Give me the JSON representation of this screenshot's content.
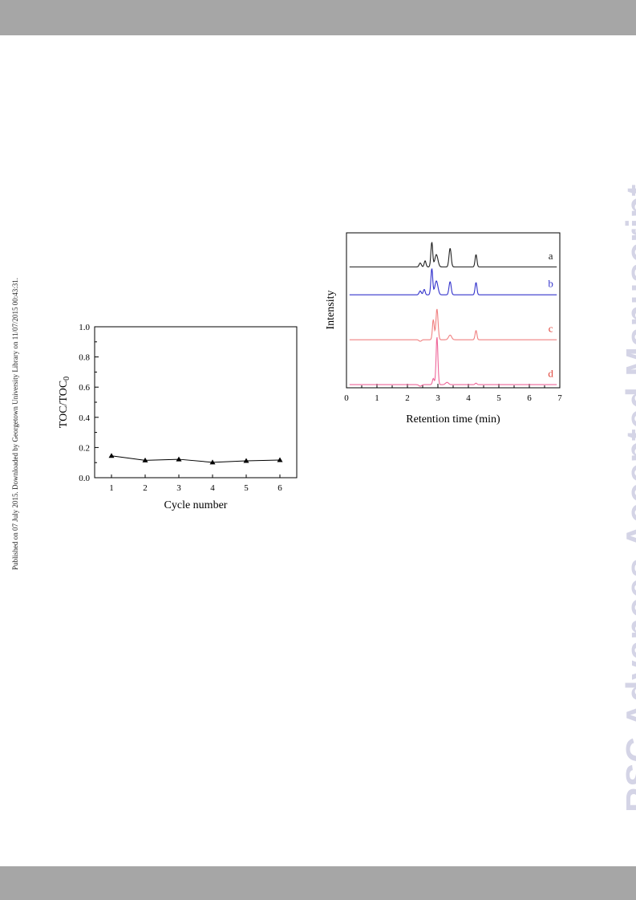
{
  "header": {},
  "side_note": "Published on 07 July 2015. Downloaded by Georgetown University Library on 11/07/2015 00:43:31.",
  "watermark": "RSC Advances Accepted Manuscript",
  "colors": {
    "band": "#a6a6a6",
    "watermark": "#d4d4e6"
  },
  "chart_data": [
    {
      "type": "line",
      "title": "",
      "xlabel": "Cycle number",
      "ylabel": "TOC/TOC",
      "ylabel_sub": "0",
      "x": [
        1,
        2,
        3,
        4,
        5,
        6
      ],
      "series": [
        {
          "values": [
            0.145,
            0.115,
            0.122,
            0.102,
            0.112,
            0.117
          ],
          "marker": "triangle",
          "color": "#000000"
        }
      ],
      "xlim": [
        0.5,
        6.5
      ],
      "ylim": [
        0.0,
        1.0
      ],
      "xticks": [
        "1",
        "2",
        "3",
        "4",
        "5",
        "6"
      ],
      "yticks": [
        "0.0",
        "0.2",
        "0.4",
        "0.6",
        "0.8",
        "1.0"
      ],
      "grid": false
    },
    {
      "type": "line",
      "title": "",
      "xlabel": "Retention time (min)",
      "ylabel": "Intensity",
      "xlim": [
        0,
        7
      ],
      "xticks": [
        "0",
        "1",
        "2",
        "3",
        "4",
        "5",
        "6",
        "7"
      ],
      "grid": false,
      "series": [
        {
          "label": "a",
          "color": "#222222",
          "baseline": 0.78,
          "peaks": [
            [
              2.42,
              0.025,
              0.035
            ],
            [
              2.58,
              0.04,
              0.03
            ],
            [
              2.8,
              0.16,
              0.03
            ],
            [
              2.95,
              0.08,
              0.05
            ],
            [
              3.4,
              0.12,
              0.035
            ],
            [
              4.25,
              0.08,
              0.03
            ]
          ]
        },
        {
          "label": "b",
          "color": "#3333cc",
          "baseline": 0.6,
          "peaks": [
            [
              2.42,
              0.025,
              0.035
            ],
            [
              2.55,
              0.035,
              0.03
            ],
            [
              2.8,
              0.17,
              0.03
            ],
            [
              2.95,
              0.09,
              0.05
            ],
            [
              3.4,
              0.085,
              0.035
            ],
            [
              4.25,
              0.08,
              0.03
            ]
          ]
        },
        {
          "label": "c",
          "color": "#f08080",
          "baseline": 0.31,
          "peaks": [
            [
              2.42,
              -0.01,
              0.04
            ],
            [
              2.85,
              0.13,
              0.03
            ],
            [
              2.97,
              0.2,
              0.035
            ],
            [
              3.4,
              0.03,
              0.05
            ],
            [
              4.25,
              0.06,
              0.03
            ]
          ]
        },
        {
          "label": "d",
          "color": "#ee6699",
          "baseline": 0.02,
          "peaks": [
            [
              2.42,
              -0.01,
              0.04
            ],
            [
              2.85,
              0.04,
              0.03
            ],
            [
              2.97,
              0.31,
              0.03
            ],
            [
              3.3,
              0.015,
              0.05
            ],
            [
              4.25,
              0.01,
              0.03
            ]
          ]
        }
      ],
      "label_colors": [
        "#222222",
        "#3333cc",
        "#e0443a",
        "#e0443a"
      ]
    }
  ]
}
